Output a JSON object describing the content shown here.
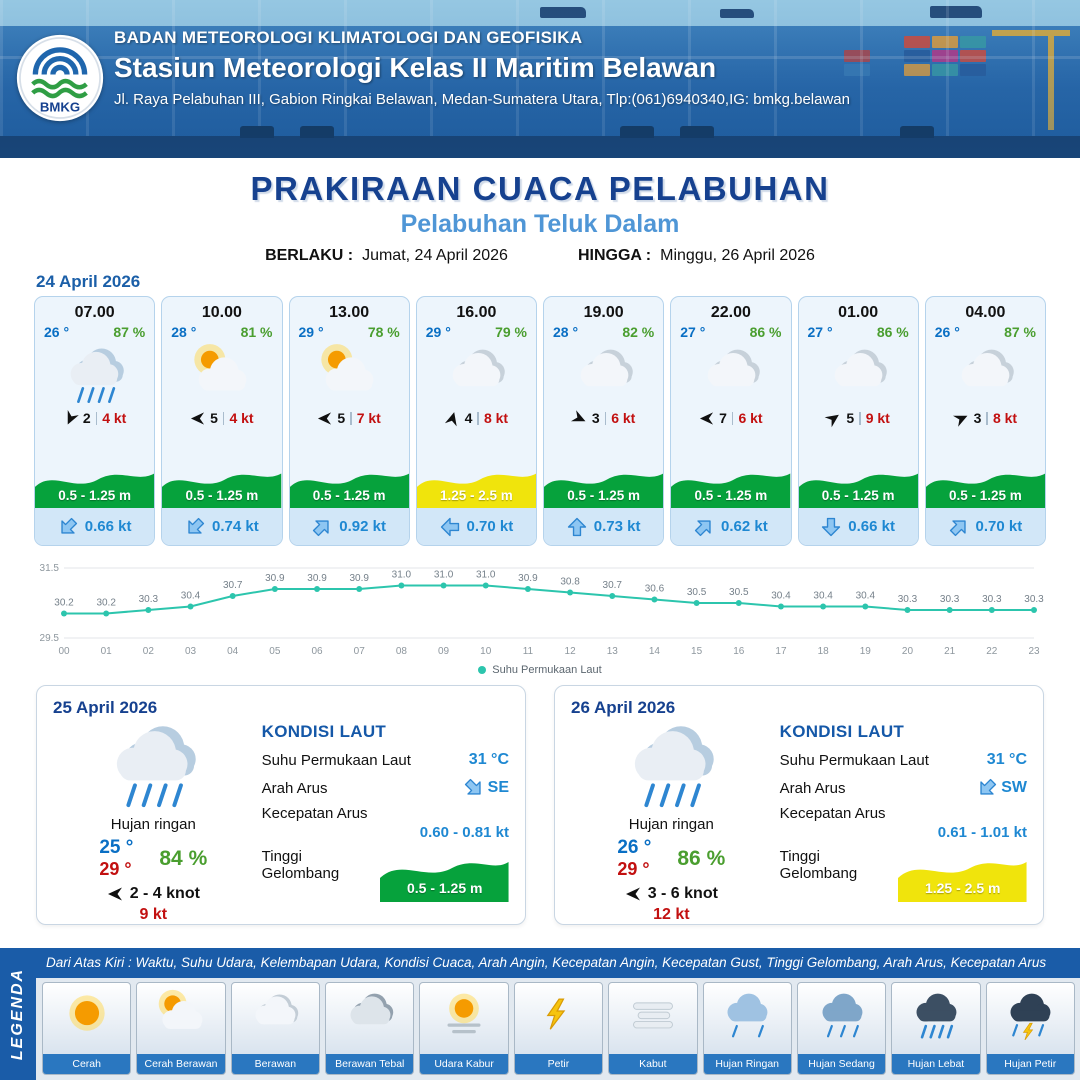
{
  "header": {
    "org": "BADAN METEOROLOGI KLIMATOLOGI DAN GEOFISIKA",
    "station": "Stasiun Meteorologi Kelas II Maritim Belawan",
    "address": "Jl. Raya Pelabuhan III, Gabion Ringkai Belawan, Medan-Sumatera Utara, Tlp:(061)6940340,IG: bmkg.belawan",
    "logo_text": "BMKG"
  },
  "title": {
    "main": "PRAKIRAAN CUACA PELABUHAN",
    "port": "Pelabuhan Teluk Dalam",
    "berlaku_label": "BERLAKU :",
    "berlaku_value": "Jumat, 24 April 2026",
    "hingga_label": "HINGGA :",
    "hingga_value": "Minggu, 26 April 2026"
  },
  "forecast_date": "24 April 2026",
  "forecast_cards": [
    {
      "time": "07.00",
      "temp": "26 °",
      "humidity": "87 %",
      "icon": "rain",
      "wind_deg": 115,
      "wind_speed": "2",
      "gust": "4 kt",
      "wave": "0.5 - 1.25 m",
      "wave_color": "#06a23c",
      "current_deg": 225,
      "current": "0.66 kt"
    },
    {
      "time": "10.00",
      "temp": "28 °",
      "humidity": "81 %",
      "icon": "partly",
      "wind_deg": 180,
      "wind_speed": "5",
      "gust": "4 kt",
      "wave": "0.5 - 1.25 m",
      "wave_color": "#06a23c",
      "current_deg": 225,
      "current": "0.74 kt"
    },
    {
      "time": "13.00",
      "temp": "29 °",
      "humidity": "78 %",
      "icon": "partly",
      "wind_deg": 180,
      "wind_speed": "5",
      "gust": "7 kt",
      "wave": "0.5 - 1.25 m",
      "wave_color": "#06a23c",
      "current_deg": 45,
      "current": "0.92 kt"
    },
    {
      "time": "16.00",
      "temp": "29 °",
      "humidity": "79 %",
      "icon": "cloudy",
      "wind_deg": 285,
      "wind_speed": "4",
      "gust": "8 kt",
      "wave": "1.25 - 2.5 m",
      "wave_color": "#f0e40c",
      "current_deg": 270,
      "current": "0.70 kt"
    },
    {
      "time": "19.00",
      "temp": "28 °",
      "humidity": "82 %",
      "icon": "cloudy",
      "wind_deg": 25,
      "wind_speed": "3",
      "gust": "6 kt",
      "wave": "0.5 - 1.25 m",
      "wave_color": "#06a23c",
      "current_deg": 0,
      "current": "0.73 kt"
    },
    {
      "time": "22.00",
      "temp": "27 °",
      "humidity": "86 %",
      "icon": "cloudy",
      "wind_deg": 180,
      "wind_speed": "7",
      "gust": "6 kt",
      "wave": "0.5 - 1.25 m",
      "wave_color": "#06a23c",
      "current_deg": 45,
      "current": "0.62 kt"
    },
    {
      "time": "01.00",
      "temp": "27 °",
      "humidity": "86 %",
      "icon": "cloudy",
      "wind_deg": 325,
      "wind_speed": "5",
      "gust": "9 kt",
      "wave": "0.5 - 1.25 m",
      "wave_color": "#06a23c",
      "current_deg": 180,
      "current": "0.66 kt"
    },
    {
      "time": "04.00",
      "temp": "26 °",
      "humidity": "87 %",
      "icon": "cloudy",
      "wind_deg": 335,
      "wind_speed": "3",
      "gust": "8 kt",
      "wave": "0.5 - 1.25 m",
      "wave_color": "#06a23c",
      "current_deg": 45,
      "current": "0.70 kt"
    }
  ],
  "chart_data": {
    "type": "line",
    "legend": "Suhu Permukaan Laut",
    "x": [
      "00",
      "01",
      "02",
      "03",
      "04",
      "05",
      "06",
      "07",
      "08",
      "09",
      "10",
      "11",
      "12",
      "13",
      "14",
      "15",
      "16",
      "17",
      "18",
      "19",
      "20",
      "21",
      "22",
      "23"
    ],
    "values": [
      30.2,
      30.2,
      30.3,
      30.4,
      30.7,
      30.9,
      30.9,
      30.9,
      31.0,
      31.0,
      31.0,
      30.9,
      30.8,
      30.7,
      30.6,
      30.5,
      30.5,
      30.4,
      30.4,
      30.4,
      30.3,
      30.3,
      30.3,
      30.3
    ],
    "ylim": [
      29.5,
      31.5
    ],
    "yticks": [
      29.5,
      31.5
    ],
    "line_color": "#2cc5ad",
    "grid": true,
    "legend_position": "bottom"
  },
  "day_cards": [
    {
      "date": "25 April 2026",
      "icon": "rain",
      "condition": "Hujan ringan",
      "temp_min": "25 °",
      "humidity": "84 %",
      "temp_max": "29 °",
      "wind_deg": 180,
      "wind_range": "2  - 4 knot",
      "gust": "9 kt",
      "sea": {
        "title": "KONDISI LAUT",
        "sst_label": "Suhu Permukaan Laut",
        "sst_value": "31 °C",
        "arus_label": "Arah Arus",
        "arus_dir": "SE",
        "arus_deg": 135,
        "kec_label": "Kecepatan Arus",
        "kec_value": "0.60 - 0.81 kt",
        "gel_label": "Tinggi Gelombang",
        "gel_value": "0.5 - 1.25 m",
        "gel_color": "#06a23c"
      }
    },
    {
      "date": "26 April 2026",
      "icon": "rain",
      "condition": "Hujan ringan",
      "temp_min": "26 °",
      "humidity": "86 %",
      "temp_max": "29 °",
      "wind_deg": 180,
      "wind_range": "3  - 6 knot",
      "gust": "12 kt",
      "sea": {
        "title": "KONDISI LAUT",
        "sst_label": "Suhu Permukaan Laut",
        "sst_value": "31 °C",
        "arus_label": "Arah Arus",
        "arus_dir": "SW",
        "arus_deg": 225,
        "kec_label": "Kecepatan Arus",
        "kec_value": "0.61  - 1.01 kt",
        "gel_label": "Tinggi Gelombang",
        "gel_value": "1.25 - 2.5 m",
        "gel_color": "#f0e40c"
      }
    }
  ],
  "legend": {
    "title": "LEGENDA",
    "note": "Dari Atas Kiri : Waktu, Suhu Udara, Kelembapan Udara, Kondisi Cuaca, Arah Angin, Kecepatan Angin, Kecepatan Gust, Tinggi Gelombang, Arah Arus, Kecepatan Arus",
    "items": [
      {
        "label": "Cerah",
        "icon": "sun"
      },
      {
        "label": "Cerah Berawan",
        "icon": "sun-cloud"
      },
      {
        "label": "Berawan",
        "icon": "cloud"
      },
      {
        "label": "Berawan Tebal",
        "icon": "cloud-thick"
      },
      {
        "label": "Udara Kabur",
        "icon": "haze"
      },
      {
        "label": "Petir",
        "icon": "thunder"
      },
      {
        "label": "Kabut",
        "icon": "fog"
      },
      {
        "label": "Hujan Ringan",
        "icon": "rain-light"
      },
      {
        "label": "Hujan Sedang",
        "icon": "rain-med"
      },
      {
        "label": "Hujan Lebat",
        "icon": "rain-heavy"
      },
      {
        "label": "Hujan Petir",
        "icon": "rain-thunder"
      }
    ]
  },
  "colors": {
    "green_wave": "#06a23c",
    "yellow_wave": "#f0e40c",
    "accent_blue": "#1a5ca8",
    "temp_blue": "#0a6fc4",
    "humidity_green": "#4a9e2f",
    "gust_red": "#c21010"
  }
}
